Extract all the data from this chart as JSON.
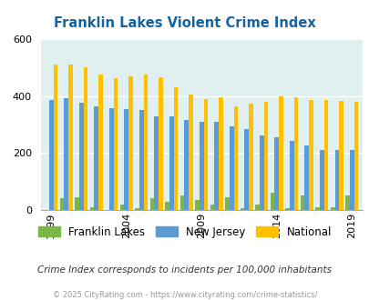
{
  "title": "Franklin Lakes Violent Crime Index",
  "years": [
    1999,
    2000,
    2001,
    2002,
    2003,
    2004,
    2005,
    2006,
    2007,
    2008,
    2009,
    2010,
    2011,
    2012,
    2013,
    2014,
    2015,
    2016,
    2017,
    2018,
    2019
  ],
  "franklin_lakes": [
    0,
    40,
    45,
    10,
    0,
    20,
    5,
    40,
    30,
    50,
    35,
    20,
    45,
    5,
    20,
    60,
    5,
    50,
    10,
    10,
    50
  ],
  "new_jersey": [
    385,
    393,
    375,
    365,
    358,
    355,
    352,
    330,
    330,
    315,
    310,
    310,
    295,
    285,
    262,
    255,
    242,
    228,
    210,
    210,
    210
  ],
  "national": [
    510,
    510,
    500,
    475,
    463,
    470,
    474,
    465,
    430,
    405,
    390,
    395,
    365,
    373,
    380,
    400,
    397,
    385,
    385,
    383,
    380
  ],
  "colors": {
    "franklin_lakes": "#7ab648",
    "new_jersey": "#5b9bd5",
    "national": "#ffc000"
  },
  "ylim": [
    0,
    600
  ],
  "yticks": [
    0,
    200,
    400,
    600
  ],
  "background_color": "#e0eff0",
  "subtitle": "Crime Index corresponds to incidents per 100,000 inhabitants",
  "footer": "© 2025 CityRating.com - https://www.cityrating.com/crime-statistics/",
  "legend_labels": [
    "Franklin Lakes",
    "New Jersey",
    "National"
  ],
  "title_color": "#1464a0",
  "subtitle_color": "#333333",
  "footer_color": "#999999",
  "tick_years": [
    1999,
    2004,
    2009,
    2014,
    2019
  ]
}
